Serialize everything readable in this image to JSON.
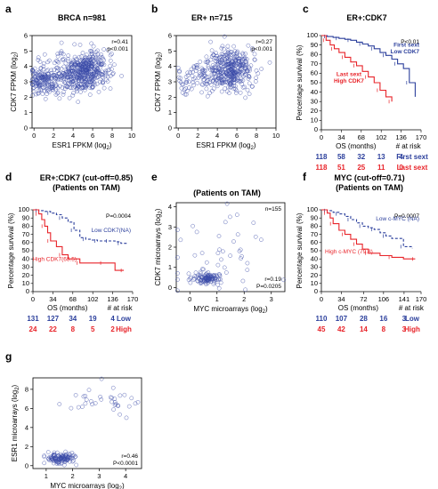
{
  "colors": {
    "blue": "#2b3f9c",
    "red": "#e8242a",
    "black": "#000000",
    "point": "#3a4aa8"
  },
  "chart_data": [
    {
      "id": "a",
      "panel_label": "a",
      "type": "scatter",
      "title": "BRCA n=981",
      "xlabel": "ESR1 FPKM (log",
      "xlabel_sub": "2",
      "xlabel_tail": ")",
      "ylabel": "CDK7 FPKM (log",
      "ylabel_sub": "2",
      "ylabel_tail": ")",
      "xlim": [
        -0.2,
        10
      ],
      "ylim": [
        0,
        6
      ],
      "xticks": [
        0,
        2,
        4,
        6,
        8,
        10
      ],
      "yticks": [
        0,
        1,
        2,
        3,
        4,
        5,
        6
      ],
      "stats": [
        "r=0.41",
        "p<0.001"
      ],
      "clusters": [
        {
          "cx": 0.9,
          "cy": 3.1,
          "sx": 0.7,
          "sy": 0.5,
          "n": 150,
          "seed": 11
        },
        {
          "cx": 5.3,
          "cy": 3.7,
          "sx": 1.2,
          "sy": 0.65,
          "n": 380,
          "seed": 12
        },
        {
          "cx": 3.0,
          "cy": 3.4,
          "sx": 1.3,
          "sy": 0.6,
          "n": 110,
          "seed": 13
        }
      ]
    },
    {
      "id": "b",
      "panel_label": "b",
      "type": "scatter",
      "title": "ER+ n=715",
      "xlabel": "ESR1 FPKM (log",
      "xlabel_sub": "2",
      "xlabel_tail": ")",
      "ylabel": "CDK7 FPKM (log",
      "ylabel_sub": "2",
      "ylabel_tail": ")",
      "xlim": [
        -0.2,
        10
      ],
      "ylim": [
        0,
        6
      ],
      "xticks": [
        0,
        2,
        4,
        6,
        8,
        10
      ],
      "yticks": [
        0,
        1,
        2,
        3,
        4,
        5,
        6
      ],
      "stats": [
        "r=0.27",
        "p<0.001"
      ],
      "clusters": [
        {
          "cx": 5.5,
          "cy": 3.8,
          "sx": 1.2,
          "sy": 0.65,
          "n": 330,
          "seed": 21
        },
        {
          "cx": 3.2,
          "cy": 3.4,
          "sx": 1.2,
          "sy": 0.6,
          "n": 90,
          "seed": 22
        },
        {
          "cx": 1.0,
          "cy": 3.0,
          "sx": 0.6,
          "sy": 0.5,
          "n": 25,
          "seed": 23
        }
      ]
    },
    {
      "id": "c",
      "panel_label": "c",
      "type": "line",
      "title": "ER+:CDK7",
      "title2": "",
      "xlabel": "OS (months)",
      "ylabel": "Percentage survival (%)",
      "xlim": [
        0,
        170
      ],
      "ylim": [
        0,
        100
      ],
      "xticks": [
        0,
        34,
        68,
        102,
        136,
        170
      ],
      "yticks": [
        0,
        10,
        20,
        30,
        40,
        50,
        60,
        70,
        80,
        90,
        100
      ],
      "pvalue": "P<0.01",
      "series": [
        {
          "name": "First sext Low CDK7",
          "label_lines": [
            "First sext",
            "Low CDK7"
          ],
          "color": "blue",
          "dashed": false,
          "x": [
            0,
            10,
            20,
            30,
            40,
            50,
            60,
            70,
            80,
            90,
            100,
            110,
            120,
            130,
            140,
            150,
            160
          ],
          "y": [
            100,
            99,
            98,
            97,
            96,
            95,
            93,
            91,
            89,
            86,
            82,
            79,
            75,
            70,
            65,
            50,
            35
          ]
        },
        {
          "name": "Last sext High CDK7",
          "label_lines": [
            "Last sext",
            "High CDK7"
          ],
          "color": "red",
          "dashed": false,
          "x": [
            0,
            8,
            15,
            22,
            30,
            40,
            50,
            60,
            70,
            80,
            90,
            100,
            110,
            120
          ],
          "y": [
            100,
            95,
            90,
            86,
            82,
            77,
            72,
            68,
            62,
            56,
            50,
            42,
            35,
            30
          ]
        }
      ],
      "risk_header": "# at risk",
      "risk_rows": [
        {
          "color": "blue",
          "values": [
            "118",
            "58",
            "32",
            "13",
            "4"
          ],
          "label": "First sext"
        },
        {
          "color": "red",
          "values": [
            "118",
            "51",
            "25",
            "11",
            "0"
          ],
          "label": "Last sext"
        }
      ]
    },
    {
      "id": "d",
      "panel_label": "d",
      "type": "line",
      "title": "ER+:CDK7 (cut-off=0.85)",
      "title2": "(Patients on TAM)",
      "xlabel": "OS (months)",
      "ylabel": "Percentage survival (%)",
      "xlim": [
        0,
        170
      ],
      "ylim": [
        0,
        100
      ],
      "xticks": [
        0,
        34,
        68,
        102,
        136,
        170
      ],
      "yticks": [
        0,
        10,
        20,
        30,
        40,
        50,
        60,
        70,
        80,
        90,
        100
      ],
      "pvalue": "P=0.0004",
      "series": [
        {
          "name": "Low CDK7(NA)",
          "label_lines": [
            "Low CDK7(NA)"
          ],
          "color": "blue",
          "dashed": true,
          "x": [
            0,
            10,
            20,
            30,
            40,
            50,
            60,
            70,
            80,
            90,
            100,
            110,
            120,
            130,
            140,
            150,
            160
          ],
          "y": [
            100,
            99,
            98,
            96,
            94,
            90,
            85,
            75,
            66,
            64,
            63,
            62,
            62,
            62,
            61,
            59,
            58
          ]
        },
        {
          "name": "High CDK7(68.5)",
          "label_lines": [
            "High CDK7(68.5)"
          ],
          "color": "red",
          "dashed": false,
          "x": [
            0,
            10,
            15,
            20,
            25,
            30,
            40,
            50,
            60,
            80,
            100,
            120,
            140,
            155
          ],
          "y": [
            100,
            95,
            88,
            80,
            72,
            62,
            55,
            45,
            40,
            35,
            35,
            35,
            26,
            26
          ]
        }
      ],
      "risk_header": "# at risk",
      "risk_rows": [
        {
          "color": "blue",
          "values": [
            "131",
            "127",
            "34",
            "19",
            "4"
          ],
          "label": "Low"
        },
        {
          "color": "red",
          "values": [
            "24",
            "22",
            "8",
            "5",
            "2"
          ],
          "label": "High"
        }
      ]
    },
    {
      "id": "e",
      "panel_label": "e",
      "type": "scatter",
      "title": "(Patients on TAM)",
      "xlabel": "MYC microarrays (log",
      "xlabel_sub": "2",
      "xlabel_tail": ")",
      "ylabel": "CDK7 microarrays (log",
      "ylabel_sub": "2",
      "ylabel_tail": ")",
      "xlim": [
        -0.5,
        3.5
      ],
      "ylim": [
        -0.2,
        4.2
      ],
      "xticks": [
        0,
        1,
        2,
        3
      ],
      "yticks": [
        0,
        1,
        2,
        3,
        4
      ],
      "stats": [
        "n=155",
        "r=0.19",
        "P=0.0205"
      ],
      "stat_positions": [
        "top",
        "bottom",
        "bottom"
      ],
      "clusters": [
        {
          "cx": 0.6,
          "cy": 0.45,
          "sx": 0.3,
          "sy": 0.12,
          "n": 115,
          "seed": 31
        },
        {
          "cx": 1.3,
          "cy": 1.8,
          "sx": 0.9,
          "sy": 0.9,
          "n": 40,
          "seed": 32
        }
      ]
    },
    {
      "id": "f",
      "panel_label": "f",
      "type": "line",
      "title": "MYC (cut-off=0.71)",
      "title2": "(Patients on TAM)",
      "xlabel": "OS (months)",
      "ylabel": "Percentage survival (%)",
      "xlim": [
        0,
        170
      ],
      "ylim": [
        0,
        100
      ],
      "xticks": [
        0,
        34,
        72,
        106,
        141,
        170
      ],
      "yticks": [
        0,
        10,
        20,
        30,
        40,
        50,
        60,
        70,
        80,
        90,
        100
      ],
      "pvalue": "P=0.0007",
      "series": [
        {
          "name": "Low c-MYC (NA)",
          "label_lines": [
            "Low c-MYC (NA)"
          ],
          "color": "blue",
          "dashed": true,
          "x": [
            0,
            10,
            20,
            30,
            40,
            50,
            60,
            70,
            80,
            90,
            100,
            110,
            120,
            140,
            155
          ],
          "y": [
            100,
            99,
            97,
            95,
            92,
            88,
            84,
            80,
            78,
            76,
            72,
            68,
            65,
            55,
            53
          ]
        },
        {
          "name": "High c-MYC (79.8)",
          "label_lines": [
            "High c-MYC (79.8)"
          ],
          "color": "red",
          "dashed": false,
          "x": [
            0,
            10,
            15,
            20,
            30,
            40,
            50,
            60,
            70,
            80,
            100,
            120,
            140,
            160
          ],
          "y": [
            100,
            96,
            90,
            83,
            75,
            70,
            64,
            58,
            52,
            47,
            44,
            42,
            40,
            40
          ]
        }
      ],
      "risk_header": "# at risk",
      "risk_rows": [
        {
          "color": "blue",
          "values": [
            "110",
            "107",
            "28",
            "16",
            "3"
          ],
          "label": "Low"
        },
        {
          "color": "red",
          "values": [
            "45",
            "42",
            "14",
            "8",
            "3"
          ],
          "label": "High"
        }
      ]
    },
    {
      "id": "g",
      "panel_label": "g",
      "type": "scatter",
      "title": "",
      "xlabel": "MYC microarrays (log",
      "xlabel_sub": "2",
      "xlabel_tail": ")",
      "ylabel": "ESR1 microarrays (log",
      "ylabel_sub": "2",
      "ylabel_tail": ")",
      "xlim": [
        0.5,
        4.6
      ],
      "ylim": [
        -0.3,
        9.2
      ],
      "xticks": [
        1,
        2,
        3,
        4
      ],
      "yticks": [
        0,
        2,
        4,
        6,
        8
      ],
      "stats": [
        "r=0.46",
        "P<0.0001"
      ],
      "stat_positions": [
        "bottom",
        "bottom"
      ],
      "clusters": [
        {
          "cx": 1.6,
          "cy": 0.8,
          "sx": 0.3,
          "sy": 0.3,
          "n": 120,
          "seed": 41
        },
        {
          "cx": 3.2,
          "cy": 7.0,
          "sx": 0.7,
          "sy": 0.8,
          "n": 35,
          "seed": 42
        }
      ]
    }
  ]
}
